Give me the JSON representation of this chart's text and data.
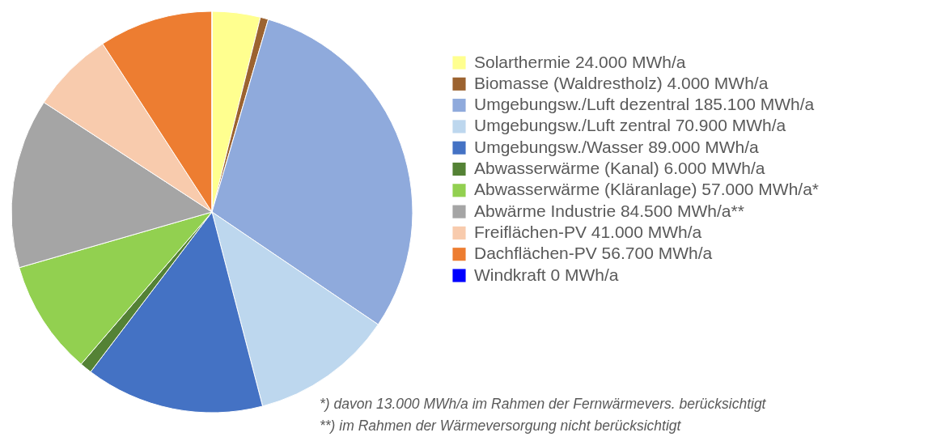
{
  "chart_data": {
    "type": "pie",
    "categories": [
      "Solarthermie 24.000 MWh/a",
      "Biomasse (Waldrestholz) 4.000 MWh/a",
      "Umgebungsw./Luft dezentral 185.100 MWh/a",
      "Umgebungsw./Luft zentral 70.900 MWh/a",
      "Umgebungsw./Wasser 89.000 MWh/a",
      "Abwasserwärme (Kanal) 6.000 MWh/a",
      "Abwasserwärme (Kläranlage) 57.000 MWh/a*",
      "Abwärme Industrie 84.500 MWh/a**",
      "Freiflächen-PV 41.000 MWh/a",
      "Dachflächen-PV 56.700 MWh/a",
      "Windkraft 0 MWh/a"
    ],
    "values": [
      24000,
      4000,
      185100,
      70900,
      89000,
      6000,
      57000,
      84500,
      41000,
      56700,
      0
    ],
    "colors": [
      "#ffff8f",
      "#9c6330",
      "#8faadc",
      "#bdd7ee",
      "#4472c4",
      "#548235",
      "#92d050",
      "#a5a5a5",
      "#f8cbad",
      "#ed7d31",
      "#0000ff"
    ],
    "legend": "right",
    "annotations": [
      "*) davon 13.000 MWh/a im Rahmen der Fernwärmevers. berücksichtigt",
      "**) im Rahmen der Wärmeversorgung nicht berücksichtigt"
    ]
  }
}
